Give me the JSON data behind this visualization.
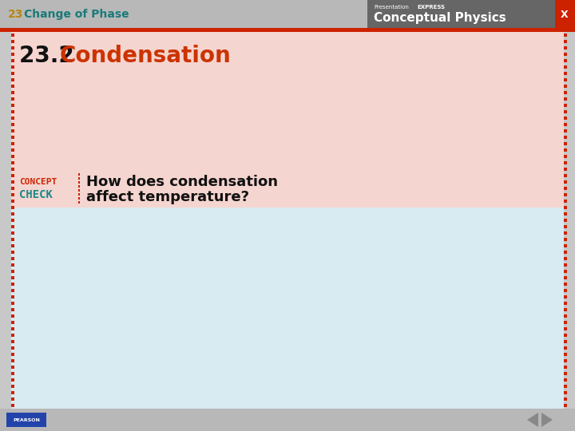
{
  "slide_bg": "#c8c8c8",
  "header_bg": "#b8b8b8",
  "header_text_num": "23",
  "header_text_main": "Change of Phase",
  "header_num_color": "#b8860b",
  "header_main_color": "#1a7a7a",
  "top_right_bg": "#666666",
  "red_bar_color": "#cc2200",
  "content_top_bg": "#f5d5d0",
  "content_bottom_bg": "#d8eaf2",
  "title_num": "23.2 ",
  "title_num_color": "#111111",
  "title_word": "Condensation",
  "title_word_color": "#cc3300",
  "concept_text1": "CONCEPT",
  "concept_text2": "CHECK",
  "concept_color": "#cc2200",
  "check_color": "#1a8888",
  "dot_divider_color": "#cc2200",
  "question_line1": "How does condensation",
  "question_line2": "affect temperature?",
  "question_color": "#111111",
  "border_dot_color": "#cc2200",
  "footer_bg": "#b8b8b8",
  "x_button_bg": "#cc2200",
  "pearson_bg": "#2244aa",
  "nav_arrow_color": "#888888",
  "presentation_color": "#ffffff",
  "express_color": "#ffffff",
  "conceptual_physics_color": "#ffffff"
}
